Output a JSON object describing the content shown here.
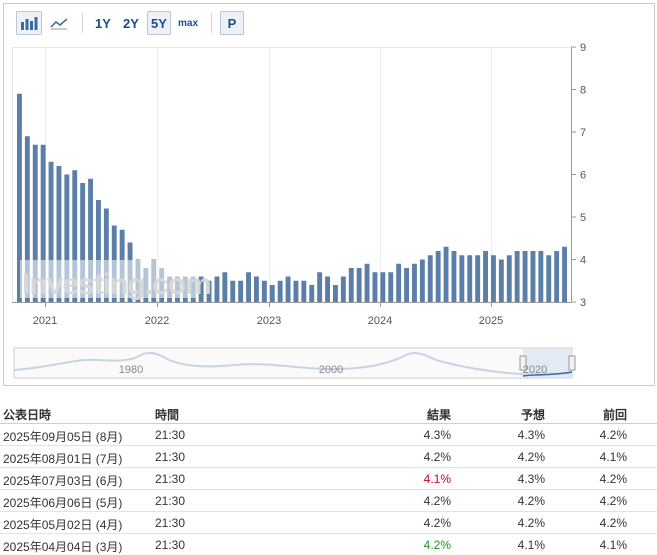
{
  "toolbar": {
    "buttons": [
      {
        "name": "bar-chart-button",
        "label": "",
        "icon": "bar-chart-icon",
        "active": true
      },
      {
        "name": "line-chart-button",
        "label": "",
        "icon": "line-chart-icon",
        "active": false
      },
      {
        "name": "range-1y-button",
        "label": "1Y"
      },
      {
        "name": "range-2y-button",
        "label": "2Y"
      },
      {
        "name": "range-5y-button",
        "label": "5Y",
        "active": true
      },
      {
        "name": "range-max-button",
        "label": "max"
      },
      {
        "name": "print-button",
        "label": "P"
      }
    ]
  },
  "chart_data": {
    "type": "bar",
    "y_ticks": [
      "3",
      "4",
      "5",
      "6",
      "7",
      "8",
      "9"
    ],
    "ylim": [
      3,
      9
    ],
    "x_ticks": [
      "2021",
      "2022",
      "2023",
      "2024",
      "2025"
    ],
    "watermark": "Investing.com",
    "color": "#5b7fa8",
    "values": [
      7.9,
      6.9,
      6.7,
      6.7,
      6.3,
      6.2,
      6.0,
      6.1,
      5.8,
      5.9,
      5.4,
      5.2,
      4.8,
      4.7,
      4.4,
      4.0,
      3.8,
      4.0,
      3.8,
      3.6,
      3.6,
      3.6,
      3.6,
      3.6,
      3.5,
      3.6,
      3.7,
      3.5,
      3.5,
      3.7,
      3.6,
      3.5,
      3.4,
      3.5,
      3.6,
      3.5,
      3.5,
      3.4,
      3.7,
      3.6,
      3.4,
      3.6,
      3.8,
      3.8,
      3.9,
      3.7,
      3.7,
      3.7,
      3.9,
      3.8,
      3.9,
      4.0,
      4.1,
      4.2,
      4.3,
      4.2,
      4.1,
      4.1,
      4.1,
      4.2,
      4.1,
      4.0,
      4.1,
      4.2,
      4.2,
      4.2,
      4.2,
      4.1,
      4.2,
      4.3
    ],
    "navigator_x_ticks": [
      "1980",
      "2000",
      "2020"
    ]
  },
  "table": {
    "headers": {
      "date": "公表日時",
      "time": "時間",
      "actual": "結果",
      "forecast": "予想",
      "previous": "前回"
    },
    "rows": [
      {
        "date": "2025年09月05日 (8月)",
        "time": "21:30",
        "actual": "4.3%",
        "actual_color": "",
        "forecast": "4.3%",
        "previous": "4.2%"
      },
      {
        "date": "2025年08月01日 (7月)",
        "time": "21:30",
        "actual": "4.2%",
        "actual_color": "",
        "forecast": "4.2%",
        "previous": "4.1%"
      },
      {
        "date": "2025年07月03日 (6月)",
        "time": "21:30",
        "actual": "4.1%",
        "actual_color": "red",
        "forecast": "4.3%",
        "previous": "4.2%"
      },
      {
        "date": "2025年06月06日 (5月)",
        "time": "21:30",
        "actual": "4.2%",
        "actual_color": "",
        "forecast": "4.2%",
        "previous": "4.2%"
      },
      {
        "date": "2025年05月02日 (4月)",
        "time": "21:30",
        "actual": "4.2%",
        "actual_color": "",
        "forecast": "4.2%",
        "previous": "4.2%"
      },
      {
        "date": "2025年04月04日 (3月)",
        "time": "21:30",
        "actual": "4.2%",
        "actual_color": "green",
        "forecast": "4.1%",
        "previous": "4.1%"
      }
    ]
  }
}
